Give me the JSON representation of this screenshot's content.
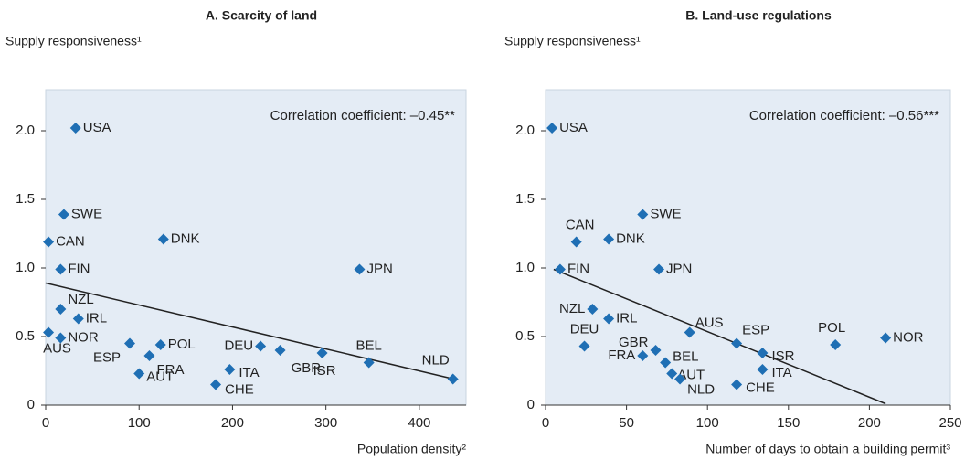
{
  "chart_data": [
    {
      "type": "scatter",
      "title": "A.    Scarcity of land",
      "y_label": "Supply responsiveness¹",
      "x_label": "Population density²",
      "annotation": "Correlation coefficient: –0.45**",
      "categories": [
        "USA",
        "SWE",
        "CAN",
        "DNK",
        "FIN",
        "JPN",
        "NZL",
        "IRL",
        "AUS",
        "NOR",
        "ESP",
        "POL",
        "FRA",
        "AUT",
        "DEU",
        "GBR",
        "ISR",
        "BEL",
        "NLD",
        "ITA",
        "CHE"
      ],
      "x": [
        32,
        19.5,
        3,
        126,
        16,
        336,
        16,
        35,
        3,
        16,
        90,
        123,
        111,
        100,
        230,
        251,
        296,
        346,
        436,
        197,
        182
      ],
      "values": [
        2.02,
        1.39,
        1.19,
        1.21,
        0.99,
        0.99,
        0.7,
        0.63,
        0.53,
        0.49,
        0.45,
        0.44,
        0.36,
        0.23,
        0.43,
        0.4,
        0.38,
        0.31,
        0.19,
        0.26,
        0.15
      ],
      "trend": {
        "x": [
          0,
          437
        ],
        "values": [
          0.89,
          0.19
        ]
      },
      "color": "#1f6fb4",
      "xlim": [
        0,
        450
      ],
      "xticks": [
        0,
        100,
        200,
        300,
        400
      ],
      "ylim": [
        0,
        2.3
      ],
      "yticks": [
        0,
        0.5,
        {
          "value": 1,
          "label": "1.0"
        },
        1.5,
        {
          "value": 2,
          "label": "2.0"
        }
      ]
    },
    {
      "type": "scatter",
      "title": "B.    Land-use regulations",
      "y_label": "Supply responsiveness¹",
      "x_label": "Number of days to obtain a building permit³",
      "annotation": "Correlation coefficient: –0.56***",
      "categories": [
        "USA",
        "SWE",
        "CAN",
        "DNK",
        "FIN",
        "JPN",
        "NZL",
        "IRL",
        "AUS",
        "DEU",
        "NOR",
        "POL",
        "ESP",
        "ISR",
        "ITA",
        "CHE",
        "GBR",
        "BEL",
        "AUT",
        "NLD",
        "FRA"
      ],
      "x": [
        4,
        60,
        19,
        39,
        9,
        70,
        29,
        39,
        89,
        24,
        210,
        179,
        118,
        134,
        134,
        118,
        68,
        74,
        78,
        83,
        60
      ],
      "values": [
        2.02,
        1.39,
        1.19,
        1.21,
        0.99,
        0.99,
        0.7,
        0.63,
        0.53,
        0.43,
        0.49,
        0.44,
        0.45,
        0.38,
        0.26,
        0.15,
        0.4,
        0.31,
        0.23,
        0.19,
        0.36
      ],
      "trend": {
        "x": [
          5,
          210
        ],
        "values": [
          0.99,
          0.01
        ]
      },
      "color": "#1f6fb4",
      "xlim": [
        0,
        250
      ],
      "xticks": [
        0,
        50,
        100,
        150,
        200,
        250
      ],
      "ylim": [
        0,
        2.3
      ],
      "yticks": [
        0,
        0.5,
        {
          "value": 1,
          "label": "1.0"
        },
        1.5,
        {
          "value": 2,
          "label": "2.0"
        }
      ]
    }
  ]
}
